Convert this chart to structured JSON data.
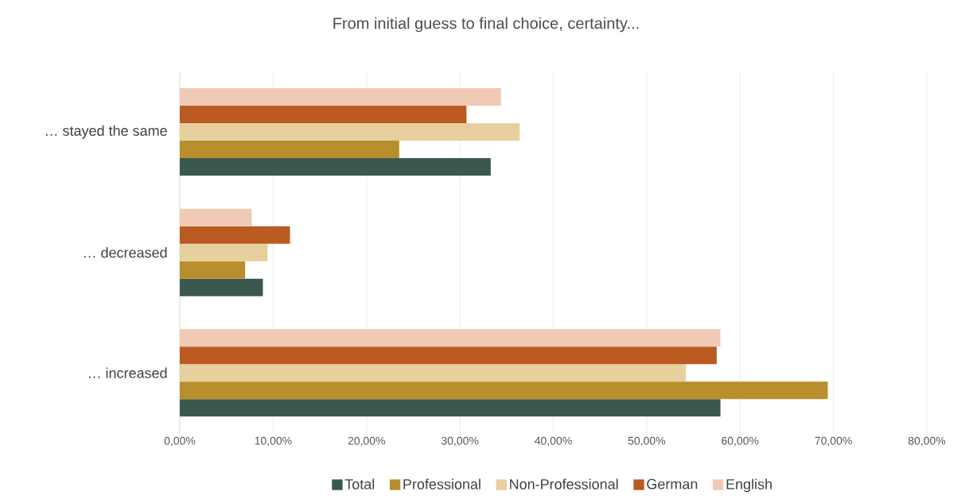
{
  "chart_data": {
    "type": "bar",
    "orientation": "horizontal",
    "title": "From initial guess to final choice, certainty...",
    "categories": [
      "… stayed the same",
      "… decreased",
      "… increased"
    ],
    "series": [
      {
        "name": "Total",
        "color": "#3b584f",
        "values": [
          33.3,
          8.9,
          57.9
        ]
      },
      {
        "name": "Professional",
        "color": "#b98e2d",
        "values": [
          23.5,
          7.0,
          69.4
        ]
      },
      {
        "name": "Non-Professional",
        "color": "#e7d09d",
        "values": [
          36.4,
          9.4,
          54.2
        ]
      },
      {
        "name": "German",
        "color": "#bb5a22",
        "values": [
          30.7,
          11.8,
          57.5
        ]
      },
      {
        "name": "English",
        "color": "#f0cab4",
        "values": [
          34.4,
          7.7,
          57.9
        ]
      }
    ],
    "xlim": [
      0,
      80
    ],
    "xticks": [
      {
        "value": 0,
        "label": "0,00%"
      },
      {
        "value": 10,
        "label": "10,00%"
      },
      {
        "value": 20,
        "label": "20,00%"
      },
      {
        "value": 30,
        "label": "30,00%"
      },
      {
        "value": 40,
        "label": "40,00%"
      },
      {
        "value": 50,
        "label": "50,00%"
      },
      {
        "value": 60,
        "label": "60,00%"
      },
      {
        "value": 70,
        "label": "70,00%"
      },
      {
        "value": 80,
        "label": "80,00%"
      }
    ],
    "grid": "x",
    "legend": "bottom"
  }
}
